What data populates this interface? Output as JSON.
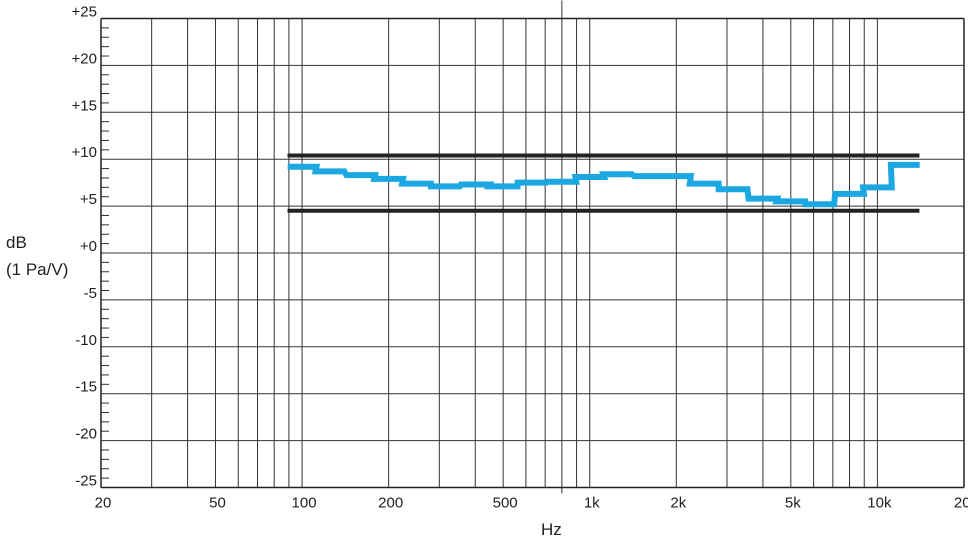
{
  "chart_data": {
    "type": "line",
    "title": "",
    "xlabel": "Hz",
    "ylabel": "dB",
    "ylabel_sub": "(1 Pa/V)",
    "x_scale": "log",
    "xlim": [
      20,
      20000
    ],
    "ylim": [
      -25,
      25
    ],
    "grid": true,
    "x_ticks": [
      20,
      50,
      100,
      200,
      500,
      1000,
      2000,
      5000,
      10000,
      20000
    ],
    "x_tick_labels": [
      "20",
      "50",
      "100",
      "200",
      "500",
      "1k",
      "2k",
      "5k",
      "10k",
      "20k"
    ],
    "y_ticks": [
      25,
      20,
      15,
      10,
      5,
      0,
      -5,
      -10,
      -15,
      -20,
      -25
    ],
    "y_tick_labels": [
      "+25",
      "+20",
      "+15",
      "+10",
      "+5",
      "+0",
      "-5",
      "-10",
      "-15",
      "-20",
      "-25"
    ],
    "series": [
      {
        "style": "step",
        "color": "#1ba8e2",
        "band_centers_hz": [
          100,
          125,
          160,
          200,
          250,
          315,
          400,
          500,
          630,
          800,
          1000,
          1250,
          1600,
          2000,
          2500,
          3150,
          4000,
          5000,
          6300,
          8000,
          10000,
          12500
        ],
        "values_db": [
          9.2,
          8.7,
          8.3,
          7.9,
          7.4,
          7.1,
          7.3,
          7.1,
          7.5,
          7.6,
          8.1,
          8.4,
          8.2,
          8.2,
          7.4,
          6.8,
          5.8,
          5.5,
          5.2,
          6.3,
          7.0,
          9.4
        ]
      }
    ],
    "tolerance_lines": {
      "color": "#222222",
      "x_range_hz": [
        89,
        14000
      ],
      "upper_db": 10.4,
      "lower_db": 4.5
    }
  }
}
